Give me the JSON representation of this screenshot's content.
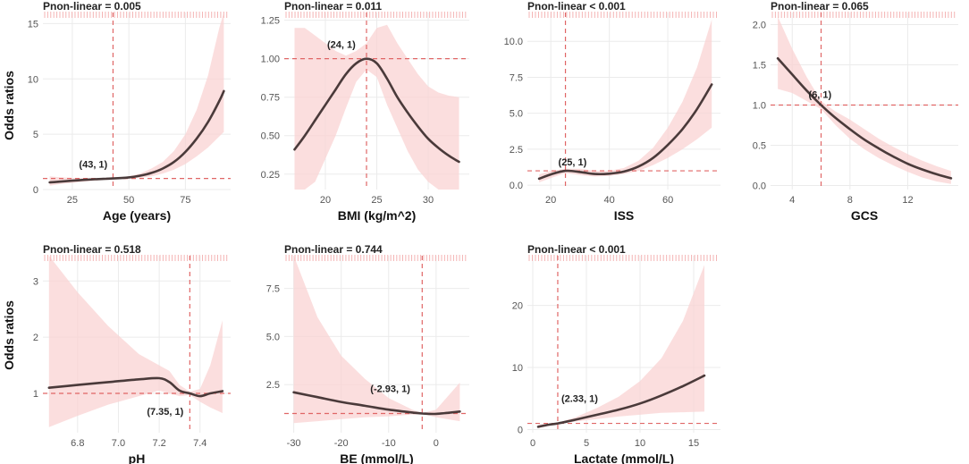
{
  "figure": {
    "y_axis_label": "Odds ratios",
    "p_label": "Pnon-linear",
    "colors": {
      "curve": "#4a3a3a",
      "band": "#f9d3d3",
      "ref": "#e06666",
      "rug": "#f4b4b4",
      "grid": "#ebebeb"
    }
  },
  "chart_data": [
    {
      "type": "line",
      "title": "Pnon-linear = 0.005",
      "xlabel": "Age (years)",
      "ylabel": "Odds ratios",
      "xlim": [
        12,
        95
      ],
      "ylim": [
        0,
        16
      ],
      "xticks": [
        25,
        50,
        75
      ],
      "xtick_labels": [
        "25",
        "50",
        "75"
      ],
      "yticks": [
        0,
        5,
        10,
        15
      ],
      "ytick_labels": [
        "0",
        "5",
        "10",
        "15"
      ],
      "x": [
        15,
        20,
        25,
        30,
        35,
        40,
        43,
        50,
        55,
        60,
        65,
        70,
        75,
        80,
        85,
        90,
        92
      ],
      "y": [
        0.65,
        0.72,
        0.8,
        0.87,
        0.93,
        0.98,
        1.0,
        1.1,
        1.25,
        1.5,
        1.9,
        2.5,
        3.4,
        4.6,
        6.1,
        8.0,
        8.9
      ],
      "lower": [
        0.35,
        0.5,
        0.6,
        0.7,
        0.8,
        0.9,
        0.95,
        0.98,
        1.05,
        1.2,
        1.45,
        1.8,
        2.3,
        3.0,
        3.8,
        4.8,
        5.2
      ],
      "upper": [
        1.2,
        1.1,
        1.05,
        1.02,
        1.02,
        1.02,
        1.05,
        1.2,
        1.45,
        1.9,
        2.5,
        3.5,
        5.0,
        7.2,
        10.3,
        14.6,
        16.5
      ],
      "ref_x": 43,
      "ref_y": 1,
      "annotation": "(43, 1)"
    },
    {
      "type": "line",
      "title": "Pnon-linear = 0.011",
      "xlabel": "BMI (kg/m^2)",
      "ylabel": "",
      "xlim": [
        16,
        34
      ],
      "ylim": [
        0.15,
        1.3
      ],
      "xticks": [
        20,
        25,
        30
      ],
      "xtick_labels": [
        "20",
        "25",
        "30"
      ],
      "yticks": [
        0.25,
        0.5,
        0.75,
        1.0,
        1.25
      ],
      "ytick_labels": [
        "0.25",
        "0.50",
        "0.75",
        "1.00",
        "1.25"
      ],
      "x": [
        17,
        18,
        19,
        20,
        21,
        22,
        23,
        24,
        25,
        26,
        27,
        28,
        29,
        30,
        31,
        32,
        33
      ],
      "y": [
        0.41,
        0.5,
        0.6,
        0.7,
        0.8,
        0.9,
        0.97,
        1.0,
        0.97,
        0.87,
        0.75,
        0.65,
        0.56,
        0.48,
        0.42,
        0.37,
        0.33
      ],
      "lower": [
        0.15,
        0.15,
        0.2,
        0.35,
        0.5,
        0.68,
        0.85,
        0.93,
        0.88,
        0.7,
        0.55,
        0.4,
        0.28,
        0.2,
        0.15,
        0.15,
        0.15
      ],
      "upper": [
        1.2,
        1.2,
        1.15,
        1.1,
        1.05,
        1.02,
        1.05,
        1.1,
        1.2,
        1.22,
        1.1,
        1.0,
        0.9,
        0.82,
        0.78,
        0.76,
        0.75
      ],
      "ref_x": 24,
      "ref_y": 1,
      "annotation": "(24, 1)"
    },
    {
      "type": "line",
      "title": "Pnon-linear < 0.001",
      "xlabel": "ISS",
      "ylabel": "",
      "xlim": [
        12,
        78
      ],
      "ylim": [
        -0.3,
        12
      ],
      "xticks": [
        20,
        40,
        60
      ],
      "xtick_labels": [
        "20",
        "40",
        "60"
      ],
      "yticks": [
        0,
        2.5,
        5,
        7.5,
        10
      ],
      "ytick_labels": [
        "0.0",
        "2.5",
        "5.0",
        "7.5",
        "10.0"
      ],
      "x": [
        16,
        20,
        25,
        30,
        35,
        40,
        45,
        50,
        55,
        60,
        65,
        70,
        75
      ],
      "y": [
        0.45,
        0.75,
        1.0,
        0.92,
        0.78,
        0.8,
        0.95,
        1.3,
        1.9,
        2.8,
        3.9,
        5.3,
        7.0
      ],
      "lower": [
        0.2,
        0.5,
        0.85,
        0.7,
        0.6,
        0.65,
        0.78,
        1.0,
        1.4,
        1.9,
        2.5,
        3.2,
        4.0
      ],
      "upper": [
        0.75,
        1.0,
        1.15,
        1.15,
        1.0,
        1.0,
        1.2,
        1.7,
        2.6,
        4.0,
        5.8,
        8.2,
        11.5
      ],
      "ref_x": 25,
      "ref_y": 1,
      "annotation": "(25, 1)"
    },
    {
      "type": "line",
      "title": "Pnon-linear = 0.065",
      "xlabel": "GCS",
      "ylabel": "",
      "xlim": [
        2.5,
        15.5
      ],
      "ylim": [
        -0.05,
        2.15
      ],
      "xticks": [
        4,
        8,
        12
      ],
      "xtick_labels": [
        "4",
        "8",
        "12"
      ],
      "yticks": [
        0,
        0.5,
        1.0,
        1.5,
        2.0
      ],
      "ytick_labels": [
        "0.0",
        "0.5",
        "1.0",
        "1.5",
        "2.0"
      ],
      "x": [
        3,
        4,
        5,
        6,
        7,
        8,
        9,
        10,
        11,
        12,
        13,
        14,
        15
      ],
      "y": [
        1.58,
        1.38,
        1.18,
        1.0,
        0.84,
        0.7,
        0.57,
        0.46,
        0.36,
        0.27,
        0.2,
        0.14,
        0.09
      ],
      "lower": [
        1.2,
        1.15,
        1.05,
        0.95,
        0.75,
        0.58,
        0.45,
        0.34,
        0.25,
        0.17,
        0.1,
        0.05,
        0.02
      ],
      "upper": [
        2.1,
        1.7,
        1.35,
        1.05,
        0.92,
        0.82,
        0.7,
        0.58,
        0.48,
        0.39,
        0.31,
        0.24,
        0.18
      ],
      "ref_x": 6,
      "ref_y": 1,
      "annotation": "(6, 1)"
    },
    {
      "type": "line",
      "title": "Pnon-linear = 0.518",
      "xlabel": "pH",
      "ylabel": "Odds ratios",
      "xlim": [
        6.63,
        7.55
      ],
      "ylim": [
        0.3,
        3.45
      ],
      "xticks": [
        6.8,
        7.0,
        7.2,
        7.4
      ],
      "xtick_labels": [
        "6.8",
        "7.0",
        "7.2",
        "7.4"
      ],
      "yticks": [
        1,
        2,
        3
      ],
      "ytick_labels": [
        "1",
        "2",
        "3"
      ],
      "x": [
        6.66,
        6.8,
        6.95,
        7.1,
        7.2,
        7.25,
        7.3,
        7.35,
        7.4,
        7.45,
        7.51
      ],
      "y": [
        1.1,
        1.15,
        1.2,
        1.25,
        1.27,
        1.2,
        1.05,
        1.0,
        0.95,
        1.0,
        1.04
      ],
      "lower": [
        0.4,
        0.6,
        0.8,
        0.95,
        1.05,
        1.0,
        0.95,
        0.97,
        0.85,
        0.75,
        0.65
      ],
      "upper": [
        3.45,
        2.8,
        2.2,
        1.7,
        1.5,
        1.4,
        1.15,
        1.03,
        1.08,
        1.5,
        2.3
      ],
      "ref_x": 7.35,
      "ref_y": 1,
      "annotation": "(7.35, 1)"
    },
    {
      "type": "line",
      "title": "Pnon-linear = 0.744",
      "xlabel": "BE (mmol/L)",
      "ylabel": "",
      "xlim": [
        -32,
        7
      ],
      "ylim": [
        0,
        9.2
      ],
      "xticks": [
        -30,
        -20,
        -10,
        0
      ],
      "xtick_labels": [
        "-30",
        "-20",
        "-10",
        "0"
      ],
      "yticks": [
        2.5,
        5.0,
        7.5
      ],
      "ytick_labels": [
        "2.5",
        "5.0",
        "7.5"
      ],
      "x": [
        -30,
        -25,
        -20,
        -15,
        -10,
        -5,
        -2.93,
        0,
        5
      ],
      "y": [
        2.1,
        1.85,
        1.6,
        1.4,
        1.2,
        1.05,
        1.0,
        0.98,
        1.1
      ],
      "lower": [
        0.5,
        0.6,
        0.7,
        0.8,
        0.85,
        0.95,
        0.98,
        0.8,
        0.6
      ],
      "upper": [
        9.2,
        6.0,
        4.0,
        2.8,
        1.8,
        1.2,
        1.02,
        1.2,
        2.6
      ],
      "ref_x": -2.93,
      "ref_y": 1,
      "annotation": "(-2.93, 1)"
    },
    {
      "type": "line",
      "title": "Pnon-linear < 0.001",
      "xlabel": "Lactate (mmol/L)",
      "ylabel": "",
      "xlim": [
        -0.5,
        17.5
      ],
      "ylim": [
        -0.5,
        28
      ],
      "xticks": [
        0,
        5,
        10,
        15
      ],
      "xtick_labels": [
        "0",
        "5",
        "10",
        "15"
      ],
      "yticks": [
        0,
        10,
        20
      ],
      "ytick_labels": [
        "0",
        "10",
        "20"
      ],
      "x": [
        0.5,
        1.5,
        2.33,
        4,
        6,
        8,
        10,
        12,
        14,
        16
      ],
      "y": [
        0.45,
        0.8,
        1.0,
        1.6,
        2.4,
        3.2,
        4.2,
        5.5,
        7.0,
        8.7
      ],
      "lower": [
        0.2,
        0.6,
        0.9,
        1.3,
        1.7,
        2.1,
        2.4,
        2.7,
        2.8,
        2.9
      ],
      "upper": [
        0.8,
        1.0,
        1.1,
        2.0,
        3.5,
        5.3,
        7.8,
        11.5,
        17.5,
        26.5
      ],
      "ref_x": 2.33,
      "ref_y": 1,
      "annotation": "(2.33, 1)"
    }
  ]
}
